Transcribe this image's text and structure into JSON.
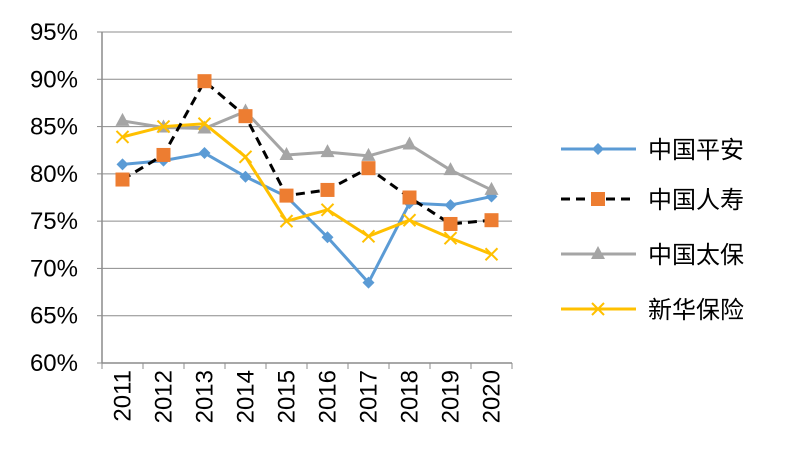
{
  "chart_data": {
    "type": "line",
    "title": "",
    "xlabel": "",
    "ylabel": "",
    "categories": [
      "2011",
      "2012",
      "2013",
      "2014",
      "2015",
      "2016",
      "2017",
      "2018",
      "2019",
      "2020"
    ],
    "ylim": [
      0.6,
      0.95
    ],
    "yticks": [
      "60%",
      "65%",
      "70%",
      "75%",
      "80%",
      "85%",
      "90%",
      "95%"
    ],
    "ytick_values": [
      0.6,
      0.65,
      0.7,
      0.75,
      0.8,
      0.85,
      0.9,
      0.95
    ],
    "grid": "horizontal",
    "legend_position": "right",
    "series": [
      {
        "name": "中国平安",
        "color": "#5B9BD5",
        "dash": "solid",
        "marker": "diamond",
        "values": [
          0.81,
          0.814,
          0.822,
          0.797,
          0.776,
          0.733,
          0.685,
          0.769,
          0.767,
          0.776
        ]
      },
      {
        "name": "中国人寿",
        "color": "#ED7D31",
        "line_color": "#000000",
        "dash": "dashed",
        "marker": "square",
        "values": [
          0.794,
          0.82,
          0.898,
          0.861,
          0.777,
          0.783,
          0.806,
          0.775,
          0.747,
          0.751
        ]
      },
      {
        "name": "中国太保",
        "color": "#A5A5A5",
        "dash": "solid",
        "marker": "triangle",
        "values": [
          0.856,
          0.849,
          0.848,
          0.866,
          0.82,
          0.823,
          0.819,
          0.831,
          0.804,
          0.783
        ]
      },
      {
        "name": "新华保险",
        "color": "#FFC000",
        "dash": "solid",
        "marker": "x",
        "values": [
          0.839,
          0.85,
          0.853,
          0.818,
          0.75,
          0.762,
          0.734,
          0.751,
          0.732,
          0.715
        ]
      }
    ]
  }
}
